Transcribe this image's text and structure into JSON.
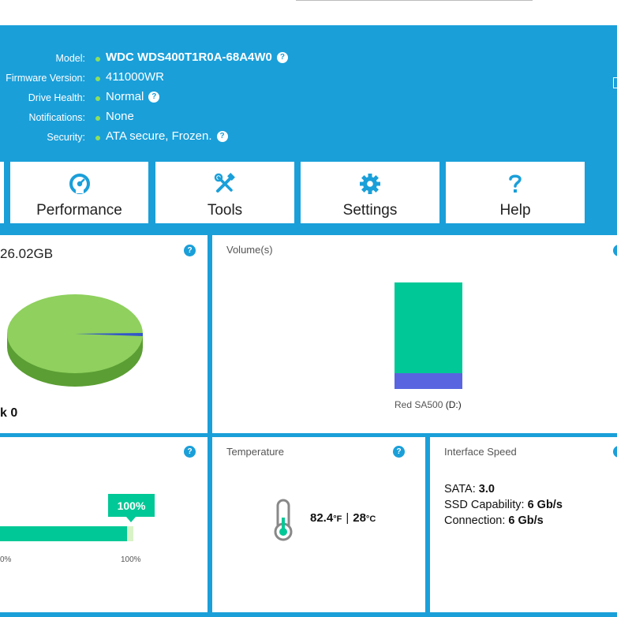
{
  "drive_info": {
    "model_label": "Model:",
    "model_value": "WDC WDS400T1R0A-68A4W0",
    "firmware_label": "Firmware Version:",
    "firmware_value": "411000WR",
    "health_label": "Drive Health:",
    "health_value": "Normal",
    "notifications_label": "Notifications:",
    "notifications_value": "None",
    "security_label": "Security:",
    "security_value": "ATA secure, Frozen."
  },
  "nav_tiles": [
    {
      "label": "Performance",
      "icon": "speedometer-icon"
    },
    {
      "label": "Tools",
      "icon": "tools-icon"
    },
    {
      "label": "Settings",
      "icon": "gear-icon"
    },
    {
      "label": "Help",
      "icon": "question-icon"
    }
  ],
  "capacity": {
    "text": "26.02GB",
    "disk_text": "k 0",
    "help": "?",
    "used_fraction": 0.992
  },
  "volumes": {
    "title": "Volume(s)",
    "name": "Red SA500",
    "letter": "(D:)",
    "used_fraction": 0.85
  },
  "life": {
    "help": "?",
    "percent_label": "100%",
    "percent_value": 100,
    "tick_min": "0%",
    "tick_max": "100%"
  },
  "temperature": {
    "title": "Temperature",
    "help": "?",
    "fahrenheit": "82.4",
    "f_unit": "°F",
    "separator": "|",
    "celsius": "28",
    "c_unit": "°C"
  },
  "interface": {
    "title": "Interface Speed",
    "sata_label": "SATA:",
    "sata_value": "3.0",
    "ssd_label": "SSD Capability:",
    "ssd_value": "6 Gb/s",
    "conn_label": "Connection:",
    "conn_value": "6 Gb/s"
  },
  "colors": {
    "accent_blue": "#1a9fd9",
    "status_green": "#8fe05a",
    "pie_green": "#8fd05e",
    "bar_teal": "#00c896",
    "free_blue": "#5965e0"
  }
}
